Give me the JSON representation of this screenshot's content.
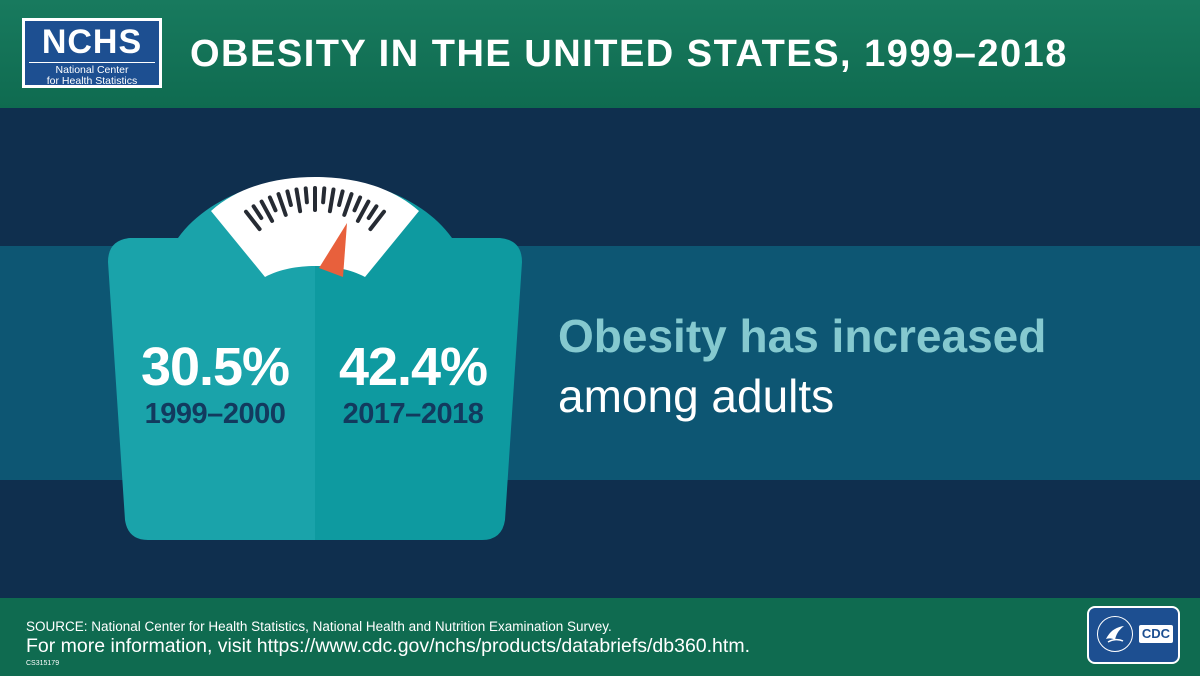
{
  "header": {
    "logo_abbr": "NCHS",
    "logo_line1": "National Center",
    "logo_line2": "for Health Statistics",
    "title": "OBESITY IN THE UNITED STATES, 1999–2018"
  },
  "stats": [
    {
      "value": "30.5%",
      "period": "1999–2000"
    },
    {
      "value": "42.4%",
      "period": "2017–2018"
    }
  ],
  "headline": {
    "line1": "Obesity has increased",
    "line2": "among adults"
  },
  "footer": {
    "source": "SOURCE: National Center for Health Statistics, National Health and Nutrition Examination Survey.",
    "more_info": "For more information, visit https://www.cdc.gov/nchs/products/databriefs/db360.htm.",
    "code": "CS315179",
    "cdc_logo": "CDC"
  },
  "colors": {
    "header_green": "#0f6b50",
    "band_dark": "#0f2f4e",
    "band_mid": "#0d5673",
    "scale_light": "#1aa3aa",
    "scale_dark": "#0e9aa0",
    "needle": "#e8603c",
    "headline_accent": "#85c9cf",
    "logo_blue": "#1d4f91"
  },
  "icons": {
    "scale": "bathroom-scale-icon",
    "needle": "scale-needle-icon",
    "seal": "hhs-seal-icon"
  }
}
